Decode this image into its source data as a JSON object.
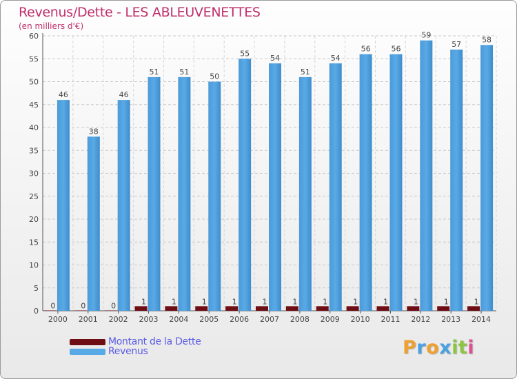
{
  "title": "Revenus/Dette - LES ABLEUVENETTES",
  "subtitle": "(en milliers d'€)",
  "colors": {
    "revenus": "#58aae6",
    "dette": "#6e0e14",
    "title": "#c0306a",
    "legend_text": "#5a5ae6"
  },
  "chart_data": {
    "type": "bar",
    "categories": [
      "2000",
      "2001",
      "2002",
      "2003",
      "2004",
      "2005",
      "2006",
      "2007",
      "2008",
      "2009",
      "2010",
      "2011",
      "2012",
      "2013",
      "2014"
    ],
    "series": [
      {
        "name": "Montant de la Dette",
        "values": [
          0,
          0,
          0,
          1,
          1,
          1,
          1,
          1,
          1,
          1,
          1,
          1,
          1,
          1,
          1
        ]
      },
      {
        "name": "Revenus",
        "values": [
          46,
          38,
          46,
          51,
          51,
          50,
          55,
          54,
          51,
          54,
          56,
          56,
          59,
          57,
          58
        ]
      }
    ],
    "ylim": [
      0,
      60
    ],
    "yticks": [
      0,
      5,
      10,
      15,
      20,
      25,
      30,
      35,
      40,
      45,
      50,
      55,
      60
    ],
    "grid": true,
    "legend_position": "bottom-left"
  },
  "legend": [
    {
      "label": "Montant de la Dette",
      "color": "#6e0e14"
    },
    {
      "label": "Revenus",
      "color": "#58aae6"
    }
  ],
  "logo": {
    "letters": [
      "P",
      "r",
      "o",
      "x",
      "i",
      "t",
      "i"
    ],
    "colors": [
      "#f0a030",
      "#4aa0e0",
      "#f0a030",
      "#4aa0e0",
      "#8cc640",
      "#8cc640",
      "#e05090"
    ]
  }
}
